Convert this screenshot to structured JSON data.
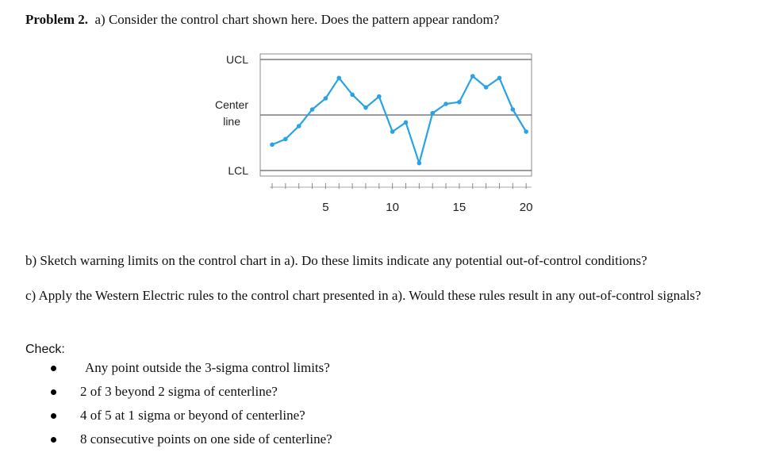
{
  "problem": {
    "number_label": "Problem 2.",
    "part_a": "a) Consider the control chart shown here. Does the pattern appear random?",
    "part_b": "b) Sketch warning limits on the control chart in a). Do these limits indicate any potential out-of-control conditions?",
    "part_c": "c)  Apply the Western Electric rules to the control chart presented in a). Would these rules result in any out-of-control signals?"
  },
  "check": {
    "label": "Check:",
    "items": [
      "Any point outside the 3-sigma control limits?",
      "2 of 3 beyond 2 sigma of centerline?",
      "4 of 5 at 1 sigma or beyond of centerline?",
      "8 consecutive points on one side of centerline?"
    ]
  },
  "chart_data": {
    "type": "line",
    "title": "",
    "xlabel": "",
    "ylabel": "",
    "line_labels": {
      "ucl": "UCL",
      "center": "Center line",
      "lcl": "LCL"
    },
    "ucl": 3,
    "center": 0,
    "lcl": -3,
    "x": [
      1,
      2,
      3,
      4,
      5,
      6,
      7,
      8,
      9,
      10,
      11,
      12,
      13,
      14,
      15,
      16,
      17,
      18,
      19,
      20
    ],
    "series": [
      {
        "values": [
          -1.6,
          -1.3,
          -0.6,
          0.3,
          0.9,
          2.0,
          1.1,
          0.4,
          1.0,
          -0.9,
          -0.4,
          -2.6,
          0.1,
          0.6,
          0.7,
          2.1,
          1.5,
          2.0,
          0.3,
          -0.9
        ]
      }
    ],
    "xticks": [
      5,
      10,
      15,
      20
    ],
    "xlim": [
      0,
      20
    ],
    "ylim": [
      -3,
      3
    ],
    "line_color": "#29a3e6",
    "grid": false
  }
}
